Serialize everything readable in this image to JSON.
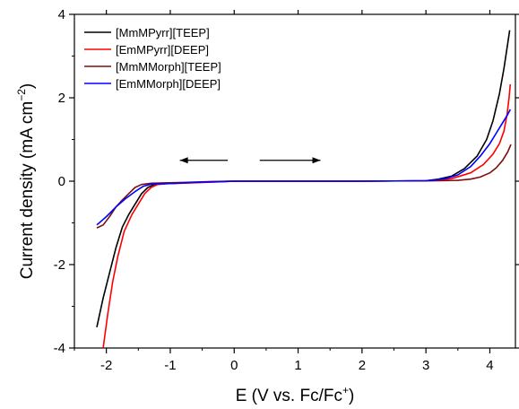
{
  "chart_data": {
    "type": "line",
    "title": "",
    "xlabel": "E (V vs. Fc/Fc+)",
    "xlabel_parts": {
      "main": "E (V vs. Fc/Fc",
      "sup": "+",
      "end": ")"
    },
    "ylabel": "Current density (mA cm-2)",
    "ylabel_parts": {
      "main": "Current density (mA cm",
      "sup": "−2",
      "end": ")"
    },
    "xlim": [
      -2.5,
      4.4
    ],
    "ylim": [
      -4,
      4
    ],
    "x_ticks": [
      -2,
      -1,
      0,
      1,
      2,
      3,
      4
    ],
    "y_ticks": [
      -4,
      -2,
      0,
      2,
      4
    ],
    "x_tick_labels": [
      "-2",
      "-1",
      "0",
      "1",
      "2",
      "3",
      "4"
    ],
    "y_tick_labels": [
      "-4",
      "-2",
      "0",
      "2",
      "4"
    ],
    "grid": false,
    "legend_position": "top-left",
    "annotations": [
      {
        "type": "arrow",
        "direction": "left",
        "from": [
          -0.1,
          0.5
        ],
        "to": [
          -0.85,
          0.5
        ]
      },
      {
        "type": "arrow",
        "direction": "right",
        "from": [
          0.4,
          0.5
        ],
        "to": [
          1.35,
          0.5
        ]
      }
    ],
    "series": [
      {
        "name": "[MmMPyrr][TEEP]",
        "color": "#000000",
        "points": [
          [
            -2.15,
            -3.5
          ],
          [
            -2.05,
            -2.8
          ],
          [
            -1.95,
            -2.2
          ],
          [
            -1.85,
            -1.6
          ],
          [
            -1.75,
            -1.1
          ],
          [
            -1.65,
            -0.8
          ],
          [
            -1.55,
            -0.55
          ],
          [
            -1.45,
            -0.3
          ],
          [
            -1.35,
            -0.15
          ],
          [
            -1.25,
            -0.08
          ],
          [
            -1.1,
            -0.06
          ],
          [
            -0.8,
            -0.04
          ],
          [
            -0.4,
            -0.02
          ],
          [
            0,
            0
          ],
          [
            1,
            0
          ],
          [
            2,
            0
          ],
          [
            3.0,
            0.01
          ],
          [
            3.2,
            0.05
          ],
          [
            3.4,
            0.12
          ],
          [
            3.6,
            0.3
          ],
          [
            3.8,
            0.6
          ],
          [
            3.95,
            1.0
          ],
          [
            4.05,
            1.45
          ],
          [
            4.15,
            2.1
          ],
          [
            4.22,
            2.7
          ],
          [
            4.28,
            3.3
          ],
          [
            4.31,
            3.62
          ]
        ]
      },
      {
        "name": "[EmMPyrr][DEEP]",
        "color": "#ff0000",
        "points": [
          [
            -2.05,
            -4.0
          ],
          [
            -1.98,
            -3.2
          ],
          [
            -1.9,
            -2.4
          ],
          [
            -1.82,
            -1.8
          ],
          [
            -1.72,
            -1.2
          ],
          [
            -1.6,
            -0.8
          ],
          [
            -1.5,
            -0.55
          ],
          [
            -1.4,
            -0.3
          ],
          [
            -1.3,
            -0.15
          ],
          [
            -1.2,
            -0.08
          ],
          [
            -1.05,
            -0.06
          ],
          [
            -0.7,
            -0.04
          ],
          [
            -0.3,
            -0.02
          ],
          [
            0,
            0
          ],
          [
            1,
            0
          ],
          [
            2,
            0
          ],
          [
            3.1,
            0.01
          ],
          [
            3.4,
            0.06
          ],
          [
            3.7,
            0.2
          ],
          [
            3.9,
            0.4
          ],
          [
            4.05,
            0.65
          ],
          [
            4.15,
            0.9
          ],
          [
            4.22,
            1.2
          ],
          [
            4.27,
            1.6
          ],
          [
            4.3,
            2.0
          ],
          [
            4.32,
            2.32
          ]
        ]
      },
      {
        "name": "[MmMMorph][TEEP]",
        "color": "#7b0f0f",
        "points": [
          [
            -2.15,
            -1.12
          ],
          [
            -2.05,
            -1.05
          ],
          [
            -1.95,
            -0.85
          ],
          [
            -1.85,
            -0.62
          ],
          [
            -1.75,
            -0.45
          ],
          [
            -1.65,
            -0.3
          ],
          [
            -1.55,
            -0.15
          ],
          [
            -1.45,
            -0.08
          ],
          [
            -1.3,
            -0.05
          ],
          [
            -1.1,
            -0.04
          ],
          [
            -0.8,
            -0.03
          ],
          [
            -0.4,
            -0.01
          ],
          [
            0,
            0
          ],
          [
            1,
            0
          ],
          [
            2,
            0
          ],
          [
            3.2,
            0.01
          ],
          [
            3.5,
            0.02
          ],
          [
            3.7,
            0.05
          ],
          [
            3.85,
            0.1
          ],
          [
            4.0,
            0.2
          ],
          [
            4.1,
            0.32
          ],
          [
            4.2,
            0.5
          ],
          [
            4.28,
            0.7
          ],
          [
            4.33,
            0.88
          ]
        ]
      },
      {
        "name": "[EmMMorph][DEEP]",
        "color": "#0000ff",
        "points": [
          [
            -2.15,
            -1.05
          ],
          [
            -2.0,
            -0.85
          ],
          [
            -1.85,
            -0.62
          ],
          [
            -1.7,
            -0.42
          ],
          [
            -1.55,
            -0.25
          ],
          [
            -1.42,
            -0.12
          ],
          [
            -1.3,
            -0.07
          ],
          [
            -1.15,
            -0.06
          ],
          [
            -0.9,
            -0.05
          ],
          [
            -0.5,
            -0.02
          ],
          [
            0,
            0
          ],
          [
            1,
            0
          ],
          [
            2,
            0
          ],
          [
            3.0,
            0.01
          ],
          [
            3.3,
            0.06
          ],
          [
            3.5,
            0.15
          ],
          [
            3.7,
            0.35
          ],
          [
            3.85,
            0.6
          ],
          [
            4.0,
            0.9
          ],
          [
            4.1,
            1.15
          ],
          [
            4.2,
            1.4
          ],
          [
            4.28,
            1.6
          ],
          [
            4.32,
            1.72
          ]
        ]
      }
    ]
  }
}
